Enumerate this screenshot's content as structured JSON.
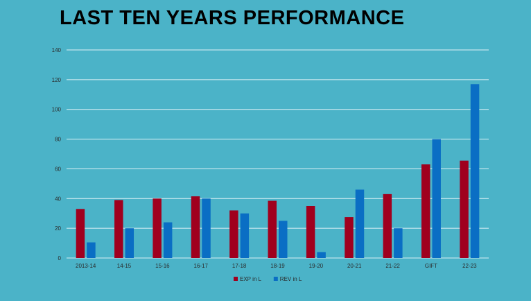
{
  "chart_data": {
    "type": "bar",
    "title": "LAST TEN YEARS PERFORMANCE",
    "categories": [
      "2013-14",
      "14-15",
      "15-16",
      "16-17",
      "17-18",
      "18-19",
      "19-20",
      "20-21",
      "21-22",
      "GIFT",
      "22-23"
    ],
    "series": [
      {
        "name": "EXP in L",
        "color": "#a0001e",
        "values": [
          33,
          39,
          40,
          41.5,
          32,
          38.5,
          35,
          27.5,
          43,
          63,
          65.5
        ]
      },
      {
        "name": "REV in L",
        "color": "#0a6ec4",
        "values": [
          10.5,
          20,
          24,
          40,
          30,
          25,
          4,
          46,
          20,
          80,
          117
        ]
      }
    ],
    "ylim": [
      0,
      140
    ],
    "yticks": [
      0,
      20,
      40,
      60,
      80,
      100,
      120,
      140
    ],
    "grid": true,
    "legend_position": "bottom"
  }
}
